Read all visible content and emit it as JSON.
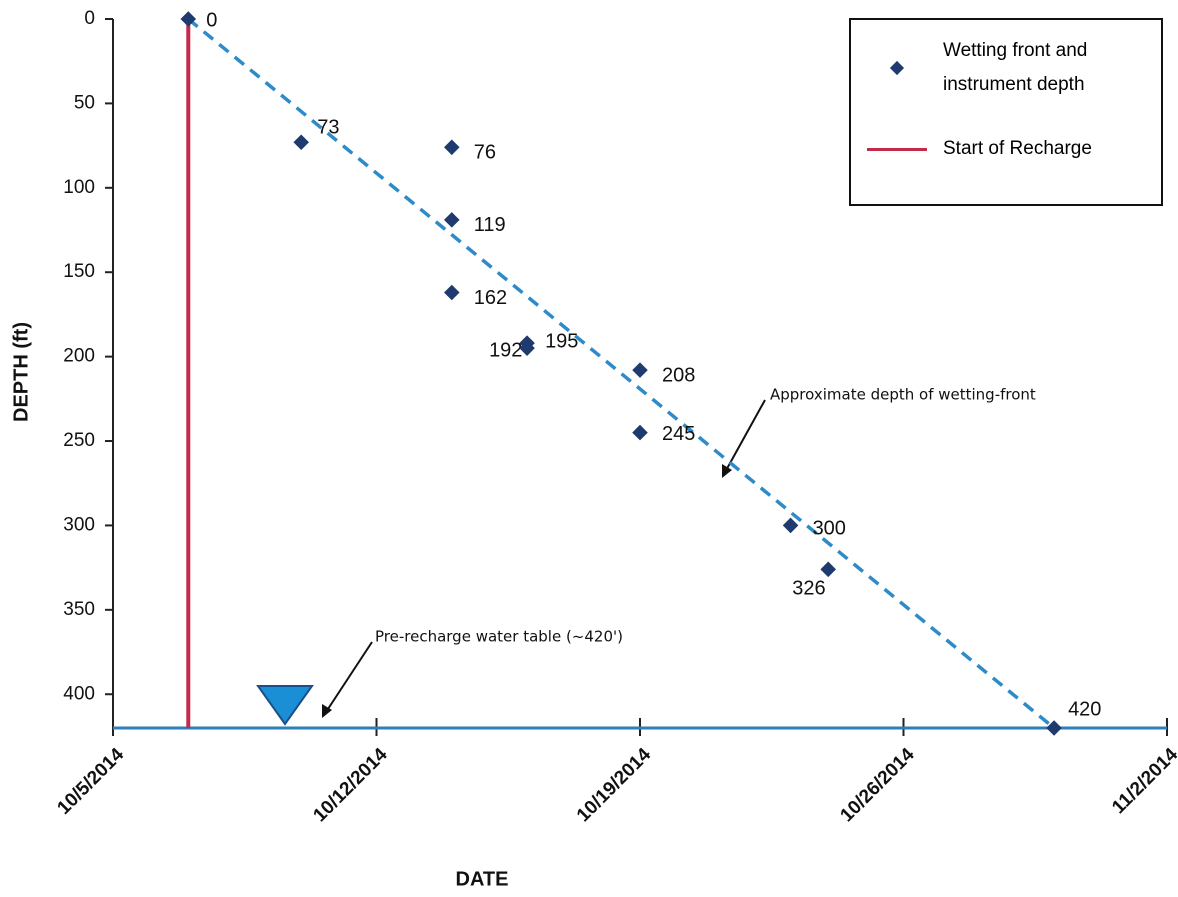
{
  "chart_data": {
    "type": "scatter",
    "x_label": "DATE",
    "y_label": "DEPTH (ft)",
    "series": [
      {
        "name": "Wetting front and instrument depth",
        "color": "#1f3a6e",
        "x": [
          "2014-10-07",
          "2014-10-10",
          "2014-10-14",
          "2014-10-14",
          "2014-10-14",
          "2014-10-16",
          "2014-10-16",
          "2014-10-19",
          "2014-10-19",
          "2014-10-23",
          "2014-10-24",
          "2014-10-30"
        ],
        "values": [
          0,
          73,
          76,
          119,
          162,
          192,
          195,
          208,
          245,
          300,
          326,
          420
        ]
      },
      {
        "name": "Start of Recharge",
        "color": "#c42a4a",
        "type": "line",
        "x": [
          "2014-10-07",
          "2014-10-07"
        ],
        "values": [
          0,
          420
        ]
      }
    ],
    "trend": {
      "color": "#2e8bc9",
      "x": [
        "2014-10-07",
        "2014-10-30"
      ],
      "values": [
        0,
        420
      ]
    },
    "water_table": {
      "color": "#2e7fb8",
      "value": 420
    },
    "annotations": [
      "Approximate depth of wetting-front",
      "Pre-recharge water table (~420')"
    ],
    "xlim": [
      "2014-10-05",
      "2014-11-02"
    ],
    "xticks": [
      {
        "value": "2014-10-05",
        "label": "10/5/2014"
      },
      {
        "value": "2014-10-12",
        "label": "10/12/2014"
      },
      {
        "value": "2014-10-19",
        "label": "10/19/2014"
      },
      {
        "value": "2014-10-26",
        "label": "10/26/2014"
      },
      {
        "value": "2014-11-02",
        "label": "11/2/2014"
      }
    ],
    "ylim": [
      0,
      420
    ],
    "yticks": [
      0,
      50,
      100,
      150,
      200,
      250,
      300,
      350,
      400
    ],
    "y_inverted": true,
    "grid": false,
    "legend": "top-right"
  }
}
